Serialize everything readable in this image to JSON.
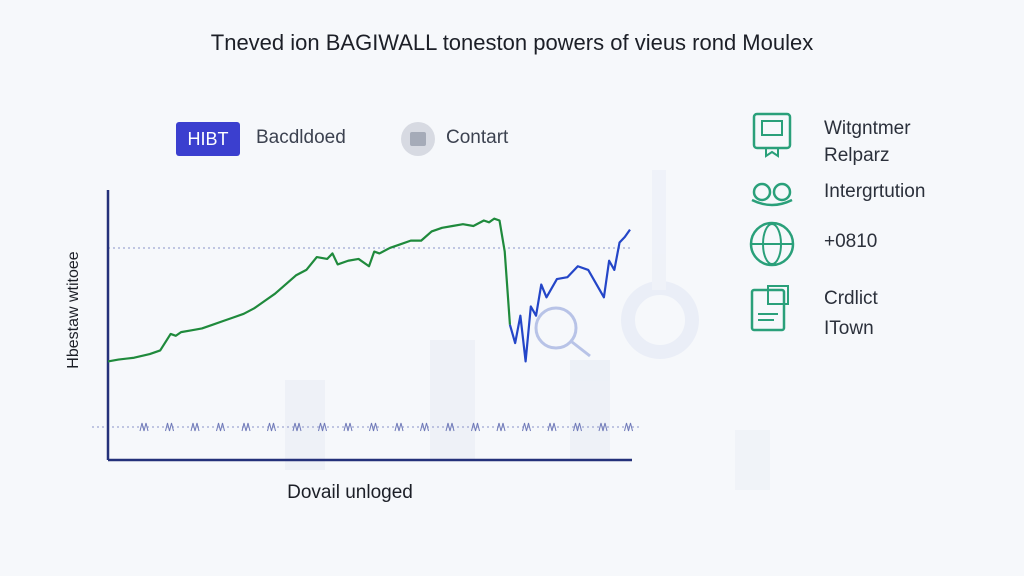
{
  "title": "Tneved ion BAGIWALL toneston powers of vieus rond Moulex",
  "tabs": {
    "badge": "HIBT",
    "backdated": "Bacdldoed",
    "contact": "Contart"
  },
  "legend": [
    {
      "icon": "certificate-icon",
      "line1": "Witgntmer",
      "line2": "Relparz"
    },
    {
      "icon": "handshake-icon",
      "line1": "Intergrtution",
      "line2": ""
    },
    {
      "icon": "globe-shield-icon",
      "line1": "+0810",
      "line2": ""
    },
    {
      "icon": "document-stamp-icon",
      "line1": "Crdlict",
      "line2": "ITown"
    }
  ],
  "colors": {
    "green_series": "#1f8a3c",
    "blue_series": "#2446c8",
    "axis": "#24317a",
    "accent": "#3b3fcf",
    "legend_icon": "#2aa07a"
  },
  "chart_data": {
    "type": "line",
    "xlabel": "Dovail unloged",
    "ylabel": "Hbestaw wtitoee",
    "xlim": [
      0,
      100
    ],
    "ylim": [
      0,
      100
    ],
    "grid": false,
    "series": [
      {
        "x": [
          0,
          2,
          5,
          8,
          10,
          12,
          13,
          14,
          16,
          18,
          20,
          22,
          24,
          26,
          28,
          30,
          32,
          34,
          36,
          38,
          40,
          42,
          43,
          44,
          46,
          48,
          50,
          51,
          52,
          54,
          56,
          58,
          60,
          62,
          64,
          66,
          68,
          70,
          72,
          73,
          74,
          75,
          76,
          77
        ],
        "y": [
          20,
          21,
          22,
          24,
          26,
          35,
          34,
          36,
          37,
          38,
          40,
          42,
          44,
          46,
          49,
          53,
          57,
          62,
          67,
          70,
          77,
          76,
          79,
          73,
          75,
          76,
          72,
          80,
          79,
          82,
          84,
          86,
          86,
          91,
          93,
          94,
          95,
          94,
          97,
          96,
          98,
          97,
          80,
          40
        ]
      },
      {
        "x": [
          77,
          78,
          79,
          80,
          81,
          82,
          83,
          84,
          86,
          88,
          90,
          92,
          94,
          95,
          96,
          97,
          98,
          99,
          100
        ],
        "y": [
          40,
          30,
          45,
          20,
          50,
          45,
          62,
          55,
          65,
          66,
          72,
          70,
          60,
          55,
          75,
          70,
          85,
          88,
          92
        ]
      }
    ],
    "tick_labels": [
      "a",
      "e",
      "i",
      "o",
      "u"
    ]
  }
}
